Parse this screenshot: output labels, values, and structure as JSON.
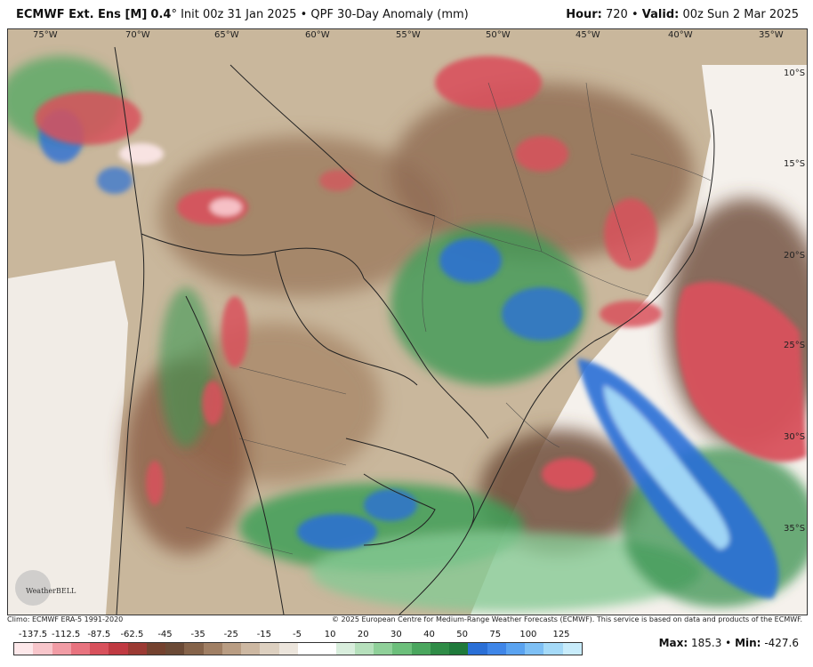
{
  "header": {
    "model": "ECMWF Ext. Ens [M]",
    "resolution": "0.4",
    "init": "Init 00z 31 Jan 2025",
    "product": "QPF 30-Day Anomaly (mm)",
    "hour_label": "Hour:",
    "hour_value": "720",
    "valid_label": "Valid:",
    "valid_value": "00z Sun 2 Mar 2025"
  },
  "map": {
    "region": "South America",
    "lon_labels": [
      "75°W",
      "70°W",
      "65°W",
      "60°W",
      "55°W",
      "50°W",
      "45°W",
      "40°W",
      "35°W"
    ],
    "lat_labels": [
      "10°S",
      "15°S",
      "20°S",
      "25°S",
      "30°S",
      "35°S"
    ],
    "logo_text": "WeatherBELL"
  },
  "credits": {
    "climo": "Climo: ECMWF ERA-5 1991-2020",
    "copyright": "© 2025 European Centre for Medium-Range Weather Forecasts (ECMWF). This service is based on data and products of the ECMWF."
  },
  "colorbar": {
    "labels": [
      "-137.5",
      "-112.5",
      "-87.5",
      "-62.5",
      "-45",
      "-35",
      "-25",
      "-15",
      "-5",
      "10",
      "20",
      "30",
      "40",
      "50",
      "75",
      "100",
      "125"
    ],
    "colors": [
      "#fde8ea",
      "#f8c6cb",
      "#f19ca5",
      "#e8737f",
      "#d8515c",
      "#c03a42",
      "#9b3a33",
      "#74422f",
      "#6b4a36",
      "#85634a",
      "#a07f64",
      "#b99d83",
      "#cdb8a2",
      "#ddd0c0",
      "#ece5dc",
      "#ffffff",
      "#ffffff",
      "#d9eedd",
      "#b6e0bc",
      "#8fd099",
      "#6cbf7b",
      "#4aa65e",
      "#2f8c47",
      "#1f7a3b",
      "#2a6fd6",
      "#3f86e8",
      "#5aa3f0",
      "#7ec0f5",
      "#a5daf8",
      "#c8ecfb"
    ]
  },
  "stats": {
    "max_label": "Max:",
    "max_value": "185.3",
    "min_label": "Min:",
    "min_value": "-427.6"
  }
}
